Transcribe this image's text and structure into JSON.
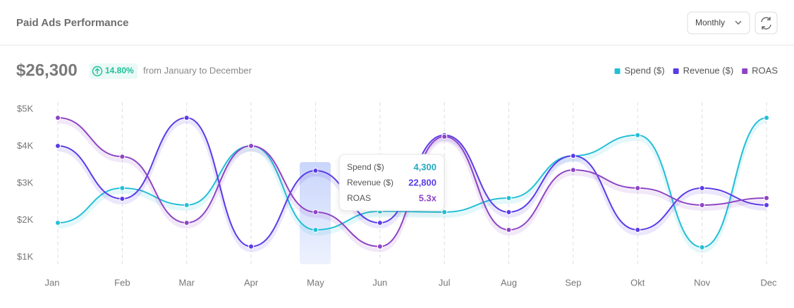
{
  "header": {
    "title": "Paid Ads Performance",
    "period_select": "Monthly"
  },
  "summary": {
    "total": "$26,300",
    "change": "14.80%",
    "range": "from January to December"
  },
  "tooltip": {
    "values": [
      "4,300",
      "22,800",
      "5.3x"
    ]
  },
  "chart_data": {
    "type": "line",
    "categories": [
      "Jan",
      "Feb",
      "Mar",
      "Apr",
      "May",
      "Jun",
      "Jul",
      "Aug",
      "Sep",
      "Okt",
      "Nov",
      "Dec"
    ],
    "series": [
      {
        "name": "Spend ($)",
        "color": "#22bfd6",
        "values": [
          1930,
          2870,
          2410,
          4010,
          1740,
          2240,
          2220,
          2600,
          3740,
          4300,
          1270,
          4770
        ]
      },
      {
        "name": "Revenue ($)",
        "color": "#5b3be8",
        "values": [
          4010,
          2580,
          4770,
          1290,
          3340,
          1930,
          4300,
          2220,
          3740,
          1740,
          2870,
          2410
        ]
      },
      {
        "name": "ROAS",
        "color": "#8e44c4",
        "values": [
          4770,
          3720,
          1930,
          4010,
          2220,
          1290,
          4260,
          1740,
          3360,
          2870,
          2410,
          2600
        ]
      }
    ],
    "ylim": [
      1000,
      5000
    ],
    "yticks": [
      {
        "value": 1000,
        "label": "$1K"
      },
      {
        "value": 2000,
        "label": "$2K"
      },
      {
        "value": 3000,
        "label": "$3K"
      },
      {
        "value": 4000,
        "label": "$4K"
      },
      {
        "value": 5000,
        "label": "$5K"
      }
    ],
    "grid": true,
    "legend": "top-right"
  }
}
